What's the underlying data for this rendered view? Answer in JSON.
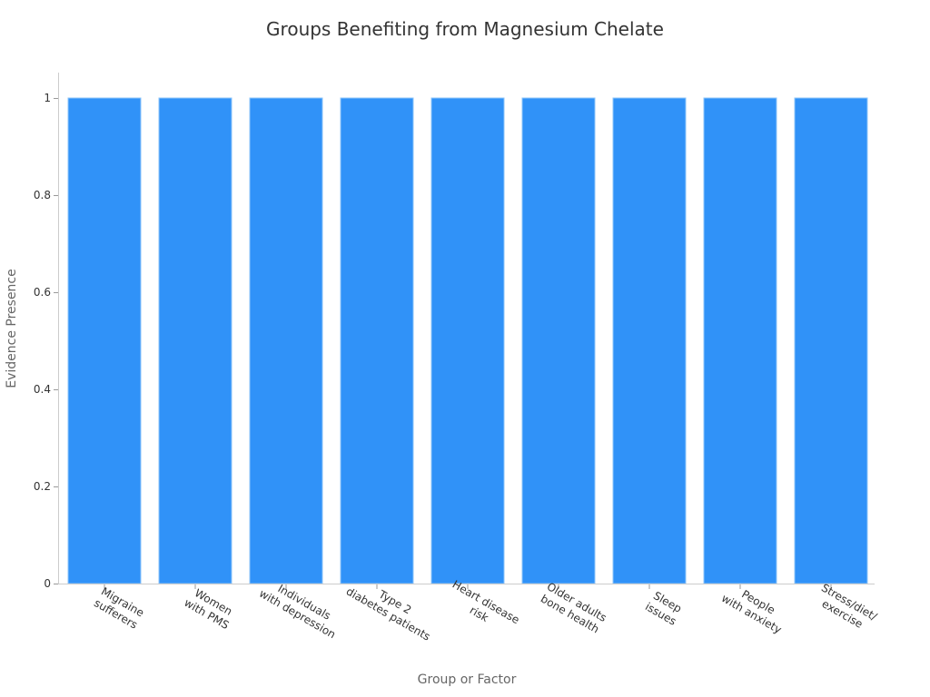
{
  "chart_data": {
    "type": "bar",
    "title": "Groups Benefiting from Magnesium Chelate",
    "xlabel": "Group or Factor",
    "ylabel": "Evidence Presence",
    "categories": [
      "Migraine\nsufferers",
      "Women\nwith PMS",
      "Individuals\nwith depression",
      "Type 2\ndiabetes patients",
      "Heart disease\nrisk",
      "Older adults\nbone health",
      "Sleep\nissues",
      "People\nwith anxiety",
      "Stress/diet/\nexercise"
    ],
    "values": [
      1,
      1,
      1,
      1,
      1,
      1,
      1,
      1,
      1
    ],
    "ylim": [
      0,
      1.05
    ],
    "yticks": [
      0,
      0.2,
      0.4,
      0.6,
      0.8,
      1
    ],
    "ytick_labels": [
      "0",
      "0.2",
      "0.4",
      "0.6",
      "0.8",
      "1"
    ],
    "grid": false,
    "legend": null,
    "bar_color": "#3092F8",
    "bar_edge_color": "#8CC4FA",
    "xtick_rotation": 30
  }
}
